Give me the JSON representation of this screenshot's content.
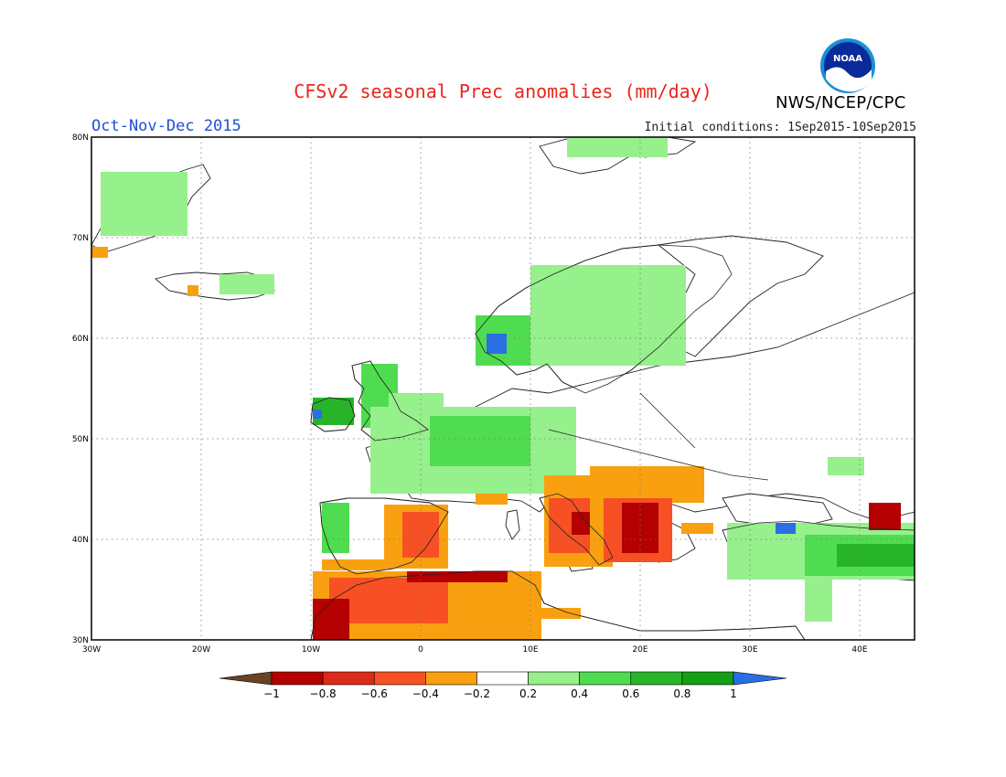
{
  "title": "CFSv2 seasonal Prec anomalies (mm/day)",
  "season": "Oct-Nov-Dec 2015",
  "initial_conditions": "Initial conditions: 1Sep2015-10Sep2015",
  "agency": "NWS/NCEP/CPC",
  "logo_text": "NOAA",
  "lat_labels": [
    "80N",
    "70N",
    "60N",
    "50N",
    "40N",
    "30N"
  ],
  "lon_labels": [
    "30W",
    "20W",
    "10W",
    "0",
    "10E",
    "20E",
    "30E",
    "40E"
  ],
  "legend": {
    "tick_labels": [
      "-1",
      "-0.8",
      "-0.6",
      "-0.4",
      "-0.2",
      "0.2",
      "0.4",
      "0.6",
      "0.8",
      "1"
    ],
    "colors": [
      "#6b4226",
      "#b40000",
      "#dc2a1a",
      "#f65024",
      "#f9a010",
      "#ffffff",
      "#96f08c",
      "#50dc50",
      "#28b428",
      "#14a014",
      "#2a6ee6"
    ]
  },
  "map_extent": {
    "lon": [
      -30,
      45
    ],
    "lat": [
      30,
      80
    ]
  }
}
